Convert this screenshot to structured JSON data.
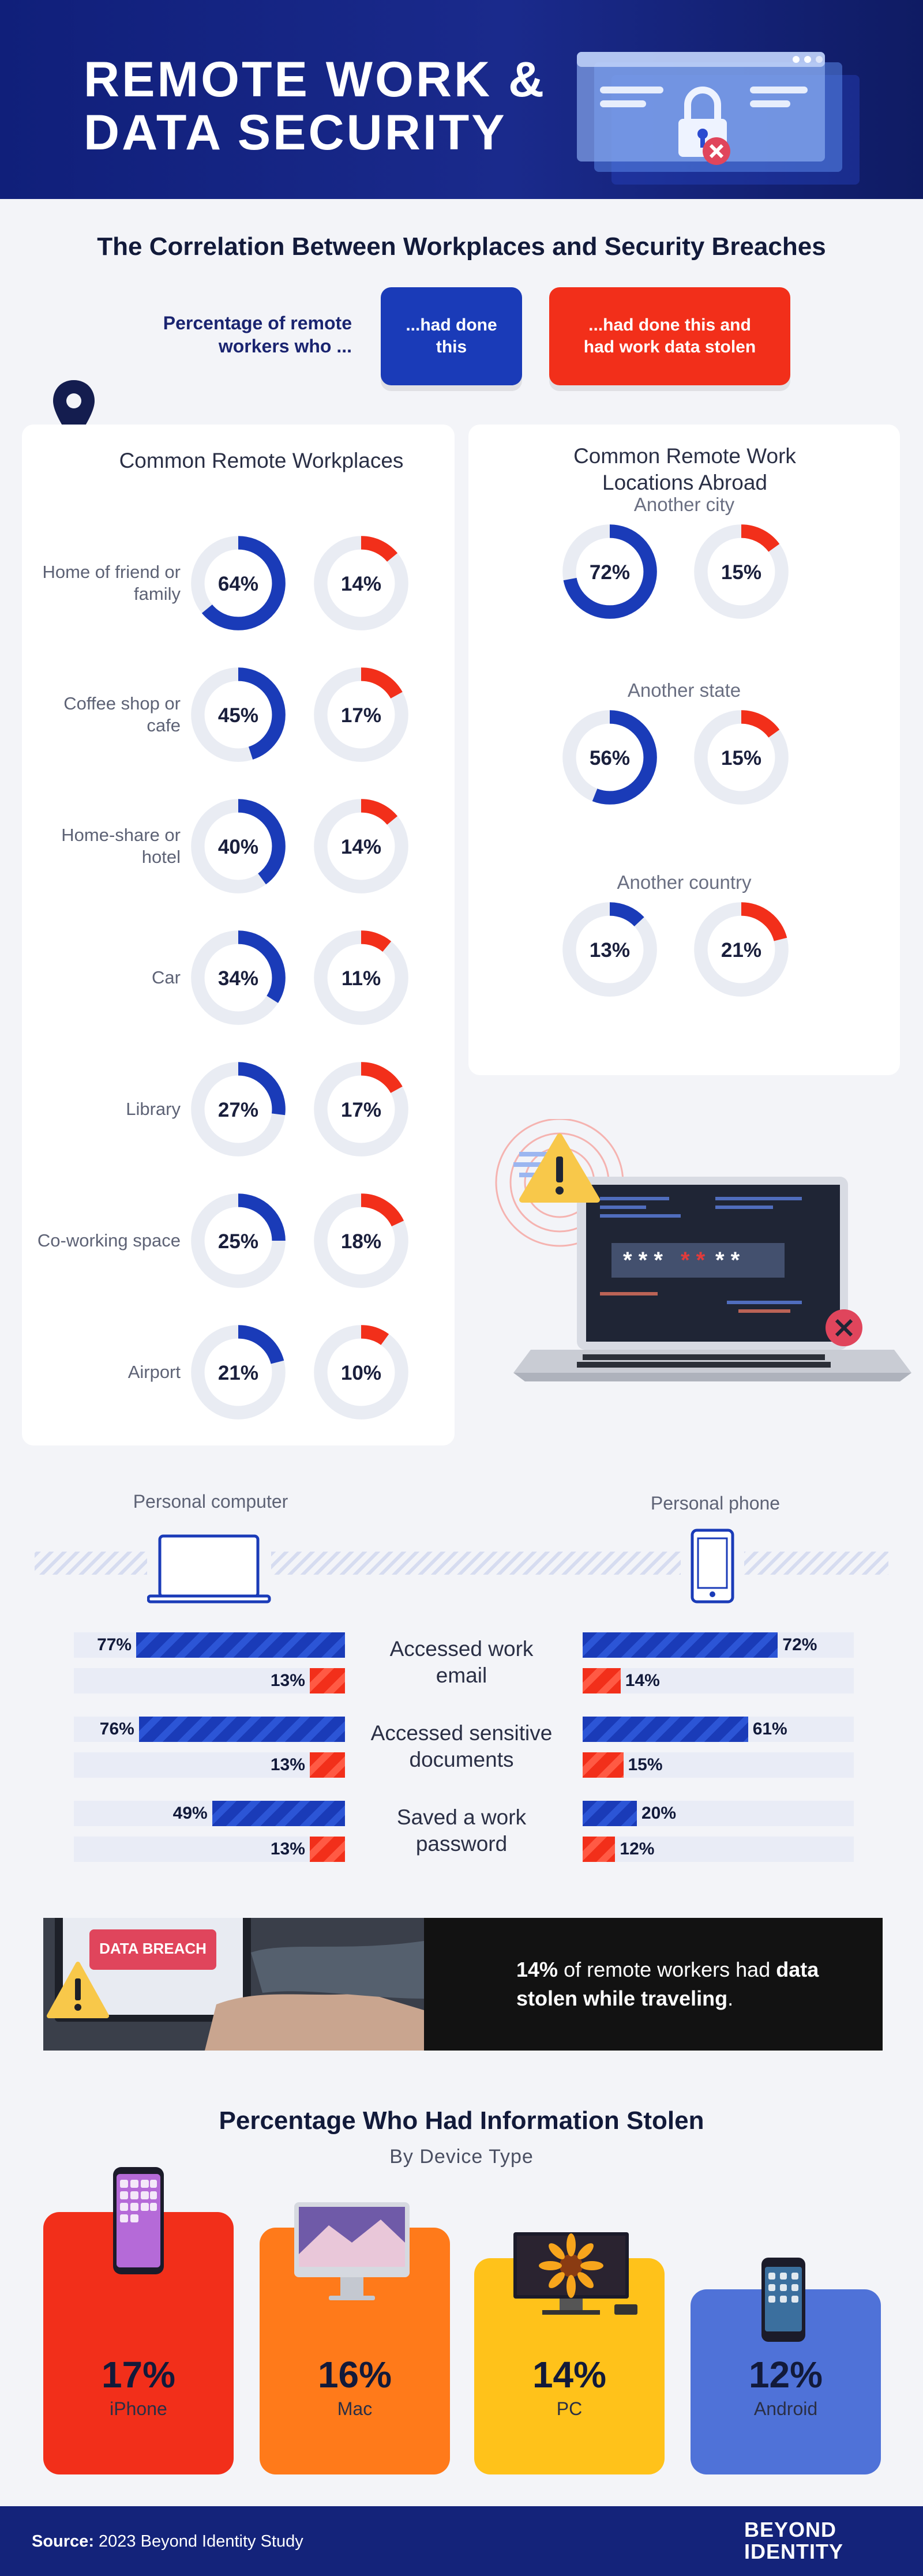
{
  "header": {
    "title_line1": "REMOTE WORK &",
    "title_line2": "DATA SECURITY",
    "accent": "#1a2a8c"
  },
  "section1": {
    "title": "The Correlation Between Workplaces and Security Breaches",
    "legend_label": "Percentage of remote workers who ...",
    "legend_blue": "...had done this",
    "legend_red": "...had done this and had work data stolen"
  },
  "workplaces": {
    "title": "Common Remote Workplaces",
    "icon": "location-pin-icon"
  },
  "abroad": {
    "title": "Common Remote Work Locations Abroad"
  },
  "devices": {
    "computer_label": "Personal computer",
    "phone_label": "Personal phone",
    "computer_icon": "laptop-icon",
    "phone_icon": "smartphone-icon"
  },
  "banner": {
    "text_pct": "14%",
    "text_mid": " of remote workers had ",
    "text_bold": "data stolen while traveling",
    "text_end": "."
  },
  "section3": {
    "title": "Percentage Who Had Information Stolen",
    "subtitle": "By Device Type"
  },
  "footer": {
    "source_label": "Source:",
    "source_text": " 2023 Beyond Identity Study",
    "logo_line1": "BEYOND",
    "logo_line2": "IDENTITY"
  },
  "colors": {
    "blue": "#1a3bb8",
    "red": "#f22f1a",
    "orange": "#ff7a1a",
    "yellow": "#ffc21a",
    "periwinkle": "#4f72d8"
  },
  "chart_data": [
    {
      "type": "donut",
      "title": "Common Remote Workplaces",
      "categories": [
        "Home of friend or family",
        "Coffee shop or cafe",
        "Home-share or hotel",
        "Car",
        "Library",
        "Co-working space",
        "Airport"
      ],
      "series": [
        {
          "name": "...had done this",
          "values": [
            64,
            45,
            40,
            34,
            27,
            25,
            21
          ],
          "labels": [
            "64%",
            "45%",
            "40%",
            "34%",
            "27%",
            "25%",
            "21%"
          ]
        },
        {
          "name": "...had done this and had work data stolen",
          "values": [
            14,
            17,
            14,
            11,
            17,
            18,
            10
          ],
          "labels": [
            "14%",
            "17%",
            "14%",
            "11%",
            "17%",
            "18%",
            "10%"
          ]
        }
      ]
    },
    {
      "type": "donut",
      "title": "Common Remote Work Locations Abroad",
      "categories": [
        "Another city",
        "Another state",
        "Another country"
      ],
      "series": [
        {
          "name": "...had done this",
          "values": [
            72,
            56,
            13
          ],
          "labels": [
            "72%",
            "56%",
            "13%"
          ]
        },
        {
          "name": "...had done this and had work data stolen",
          "values": [
            15,
            15,
            21
          ],
          "labels": [
            "15%",
            "15%",
            "21%"
          ]
        }
      ]
    },
    {
      "type": "bar",
      "title": "",
      "categories": [
        "Accessed work email",
        "Accessed sensitive documents",
        "Saved a work password"
      ],
      "groups": [
        {
          "name": "Personal computer",
          "series": [
            {
              "name": "...had done this",
              "values": [
                77,
                76,
                49
              ],
              "labels": [
                "77%",
                "76%",
                "49%"
              ]
            },
            {
              "name": "...had done this and had work data stolen",
              "values": [
                13,
                13,
                13
              ],
              "labels": [
                "13%",
                "13%",
                "13%"
              ]
            }
          ]
        },
        {
          "name": "Personal phone",
          "series": [
            {
              "name": "...had done this",
              "values": [
                72,
                61,
                20
              ],
              "labels": [
                "72%",
                "61%",
                "20%"
              ]
            },
            {
              "name": "...had done this and had work data stolen",
              "values": [
                14,
                15,
                12
              ],
              "labels": [
                "14%",
                "15%",
                "12%"
              ]
            }
          ]
        }
      ]
    },
    {
      "type": "bar",
      "title": "Percentage Who Had Information Stolen",
      "subtitle": "By Device Type",
      "categories": [
        "iPhone",
        "Mac",
        "PC",
        "Android"
      ],
      "values": [
        17,
        16,
        14,
        12
      ],
      "labels": [
        "17%",
        "16%",
        "14%",
        "12%"
      ],
      "colors": [
        "#f22f1a",
        "#ff7a1a",
        "#ffc21a",
        "#4f72d8"
      ]
    }
  ]
}
